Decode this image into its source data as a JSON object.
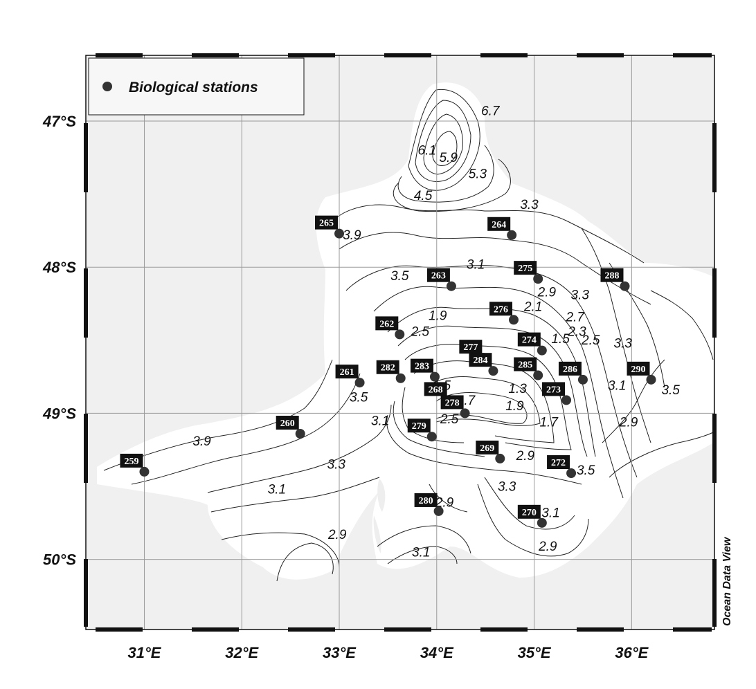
{
  "legend": {
    "label": "Biological stations"
  },
  "credit": "Ocean Data View",
  "axes": {
    "lon_ticks": [
      {
        "value": 31,
        "label": "31°E"
      },
      {
        "value": 32,
        "label": "32°E"
      },
      {
        "value": 33,
        "label": "33°E"
      },
      {
        "value": 34,
        "label": "34°E"
      },
      {
        "value": 35,
        "label": "35°E"
      },
      {
        "value": 36,
        "label": "36°E"
      }
    ],
    "lat_ticks": [
      {
        "value": -47,
        "label": "47°S"
      },
      {
        "value": -48,
        "label": "48°S"
      },
      {
        "value": -49,
        "label": "49°S"
      },
      {
        "value": -50,
        "label": "50°S"
      }
    ],
    "lon_range": [
      30.4,
      36.85
    ],
    "lat_range": [
      -50.48,
      -46.55
    ]
  },
  "stations": [
    {
      "id": "259",
      "lon": 31.0,
      "lat": -49.4
    },
    {
      "id": "260",
      "lon": 32.6,
      "lat": -49.14
    },
    {
      "id": "261",
      "lon": 33.21,
      "lat": -48.79
    },
    {
      "id": "262",
      "lon": 33.62,
      "lat": -48.46
    },
    {
      "id": "263",
      "lon": 34.15,
      "lat": -48.13
    },
    {
      "id": "264",
      "lon": 34.77,
      "lat": -47.78
    },
    {
      "id": "265",
      "lon": 33.0,
      "lat": -47.77
    },
    {
      "id": "268",
      "lon": 34.12,
      "lat": -48.91
    },
    {
      "id": "269",
      "lon": 34.65,
      "lat": -49.31
    },
    {
      "id": "270",
      "lon": 35.08,
      "lat": -49.75
    },
    {
      "id": "272",
      "lon": 35.38,
      "lat": -49.41
    },
    {
      "id": "273",
      "lon": 35.33,
      "lat": -48.91
    },
    {
      "id": "274",
      "lon": 35.08,
      "lat": -48.57
    },
    {
      "id": "275",
      "lon": 35.04,
      "lat": -48.08
    },
    {
      "id": "276",
      "lon": 34.79,
      "lat": -48.36
    },
    {
      "id": "277",
      "lon": 34.48,
      "lat": -48.62
    },
    {
      "id": "278",
      "lon": 34.29,
      "lat": -49.0
    },
    {
      "id": "279",
      "lon": 33.95,
      "lat": -49.16
    },
    {
      "id": "280",
      "lon": 34.02,
      "lat": -49.67
    },
    {
      "id": "282",
      "lon": 33.63,
      "lat": -48.76
    },
    {
      "id": "283",
      "lon": 33.98,
      "lat": -48.75
    },
    {
      "id": "284",
      "lon": 34.58,
      "lat": -48.71
    },
    {
      "id": "285",
      "lon": 35.04,
      "lat": -48.74
    },
    {
      "id": "286",
      "lon": 35.5,
      "lat": -48.77
    },
    {
      "id": "288",
      "lon": 35.93,
      "lat": -48.13
    },
    {
      "id": "290",
      "lon": 36.2,
      "lat": -48.77
    }
  ],
  "contour_labels": [
    {
      "text": "6.7",
      "lon": 34.55,
      "lat": -46.96
    },
    {
      "text": "6.1",
      "lon": 33.9,
      "lat": -47.23
    },
    {
      "text": "5.9",
      "lon": 34.12,
      "lat": -47.28
    },
    {
      "text": "5.3",
      "lon": 34.42,
      "lat": -47.39
    },
    {
      "text": "4.5",
      "lon": 33.86,
      "lat": -47.54
    },
    {
      "text": "3.3",
      "lon": 34.95,
      "lat": -47.6
    },
    {
      "text": "3.9",
      "lon": 33.13,
      "lat": -47.81
    },
    {
      "text": "3.5",
      "lon": 33.62,
      "lat": -48.09
    },
    {
      "text": "3.1",
      "lon": 34.4,
      "lat": -48.01
    },
    {
      "text": "2.9",
      "lon": 35.13,
      "lat": -48.2
    },
    {
      "text": "3.3",
      "lon": 35.47,
      "lat": -48.22
    },
    {
      "text": "2.1",
      "lon": 34.99,
      "lat": -48.3
    },
    {
      "text": "1.9",
      "lon": 34.01,
      "lat": -48.36
    },
    {
      "text": "2.5",
      "lon": 33.83,
      "lat": -48.47
    },
    {
      "text": "2.7",
      "lon": 35.42,
      "lat": -48.37
    },
    {
      "text": "2.3",
      "lon": 35.44,
      "lat": -48.47
    },
    {
      "text": "2.5",
      "lon": 35.58,
      "lat": -48.53
    },
    {
      "text": "1.5",
      "lon": 35.27,
      "lat": -48.52
    },
    {
      "text": "3.3",
      "lon": 35.91,
      "lat": -48.55
    },
    {
      "text": "3.5",
      "lon": 36.4,
      "lat": -48.87
    },
    {
      "text": "3.1",
      "lon": 35.85,
      "lat": -48.84
    },
    {
      "text": "1.5",
      "lon": 34.05,
      "lat": -48.84
    },
    {
      "text": "1.3",
      "lon": 34.83,
      "lat": -48.86
    },
    {
      "text": "1.7",
      "lon": 34.3,
      "lat": -48.94
    },
    {
      "text": "1.9",
      "lon": 34.8,
      "lat": -48.98
    },
    {
      "text": "2.5",
      "lon": 34.13,
      "lat": -49.07
    },
    {
      "text": "1.7",
      "lon": 35.15,
      "lat": -49.09
    },
    {
      "text": "2.9",
      "lon": 35.97,
      "lat": -49.09
    },
    {
      "text": "3.9",
      "lon": 31.59,
      "lat": -49.22
    },
    {
      "text": "3.5",
      "lon": 33.2,
      "lat": -48.92
    },
    {
      "text": "3.1",
      "lon": 33.42,
      "lat": -49.08
    },
    {
      "text": "3.3",
      "lon": 32.97,
      "lat": -49.38
    },
    {
      "text": "2.9",
      "lon": 34.91,
      "lat": -49.32
    },
    {
      "text": "3.5",
      "lon": 35.53,
      "lat": -49.42
    },
    {
      "text": "3.3",
      "lon": 34.72,
      "lat": -49.53
    },
    {
      "text": "3.1",
      "lon": 32.36,
      "lat": -49.55
    },
    {
      "text": "2.9",
      "lon": 34.08,
      "lat": -49.64
    },
    {
      "text": "3.1",
      "lon": 35.17,
      "lat": -49.71
    },
    {
      "text": "2.9",
      "lon": 32.98,
      "lat": -49.86
    },
    {
      "text": "3.1",
      "lon": 33.84,
      "lat": -49.98
    },
    {
      "text": "2.9",
      "lon": 35.14,
      "lat": -49.94
    }
  ]
}
